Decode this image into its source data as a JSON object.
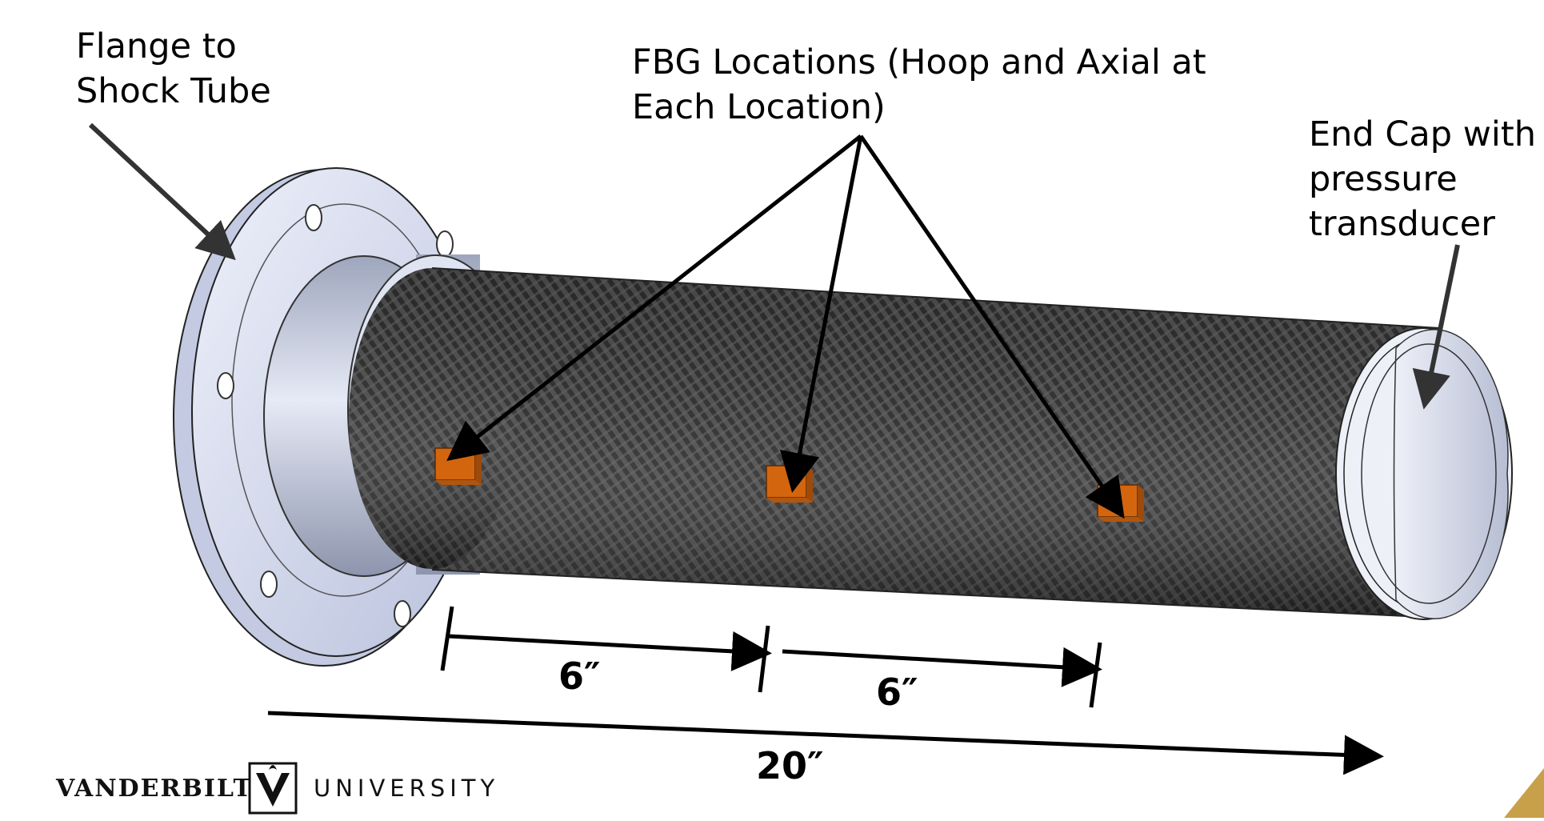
{
  "labels": {
    "flange": "Flange to\nShock Tube",
    "fbg": "FBG Locations (Hoop and Axial at\nEach Location)",
    "end_cap": "End Cap with\npressure\ntransducer"
  },
  "dimensions": {
    "spacing_1": "6″",
    "spacing_2": "6″",
    "total_length": "20″"
  },
  "logo": {
    "name": "VANDERBILT",
    "suffix": "UNIVERSITY"
  },
  "colors": {
    "flange": "#d8def3",
    "fbg_patch": "#d4650f",
    "carbon_fiber": "#3a3a3a",
    "accent_corner": "#c9a04a"
  }
}
